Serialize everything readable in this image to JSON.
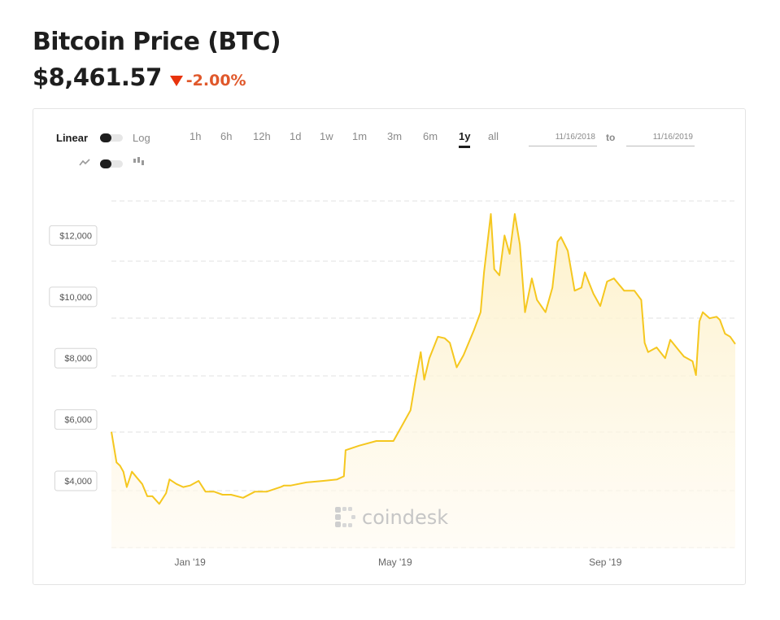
{
  "header": {
    "title": "Bitcoin Price (BTC)",
    "price": "$8,461.57",
    "change": "-2.00%"
  },
  "controls": {
    "scale_linear": "Linear",
    "scale_log": "Log",
    "ranges": [
      "1h",
      "6h",
      "12h",
      "1d",
      "1w",
      "1m",
      "3m",
      "6m",
      "1y",
      "all"
    ],
    "active_range": "1y",
    "date_from": "11/16/2018",
    "date_to_label": "to",
    "date_to": "11/16/2019"
  },
  "watermark": {
    "text": "coindesk"
  },
  "colors": {
    "line": "#f5c71f",
    "fill": "#fdf6dc",
    "change": "#e0582b",
    "arrow": "#e8330c"
  },
  "chart_data": {
    "type": "area",
    "title": "",
    "xlabel": "",
    "ylabel": "",
    "ylim": [
      1800,
      14000
    ],
    "x_ticks": [
      "Jan '19",
      "May '19",
      "Sep '19"
    ],
    "y_ticks": [
      "$4,000",
      "$6,000",
      "$8,000",
      "$10,000",
      "$12,000"
    ],
    "y_tick_values": [
      4000,
      6000,
      8000,
      10000,
      12000
    ],
    "grid": true,
    "series": [
      {
        "x": [
          "2018-11-16",
          "2018-11-19",
          "2018-11-21",
          "2018-11-23",
          "2018-11-25",
          "2018-11-28",
          "2018-12-01",
          "2018-12-04",
          "2018-12-07",
          "2018-12-10",
          "2018-12-14",
          "2018-12-18",
          "2018-12-20",
          "2018-12-24",
          "2018-12-28",
          "2019-01-01",
          "2019-01-06",
          "2019-01-10",
          "2019-01-15",
          "2019-01-20",
          "2019-01-25",
          "2019-02-01",
          "2019-02-08",
          "2019-02-15",
          "2019-02-23",
          "2019-02-25",
          "2019-03-01",
          "2019-03-10",
          "2019-03-20",
          "2019-03-28",
          "2019-04-01",
          "2019-04-02",
          "2019-04-10",
          "2019-04-20",
          "2019-04-30",
          "2019-05-05",
          "2019-05-10",
          "2019-05-13",
          "2019-05-16",
          "2019-05-18",
          "2019-05-21",
          "2019-05-26",
          "2019-05-30",
          "2019-06-02",
          "2019-06-06",
          "2019-06-10",
          "2019-06-16",
          "2019-06-20",
          "2019-06-22",
          "2019-06-26",
          "2019-06-28",
          "2019-07-01",
          "2019-07-04",
          "2019-07-07",
          "2019-07-10",
          "2019-07-13",
          "2019-07-16",
          "2019-07-20",
          "2019-07-23",
          "2019-07-28",
          "2019-08-01",
          "2019-08-04",
          "2019-08-06",
          "2019-08-10",
          "2019-08-14",
          "2019-08-18",
          "2019-08-20",
          "2019-08-25",
          "2019-08-29",
          "2019-09-02",
          "2019-09-06",
          "2019-09-12",
          "2019-09-18",
          "2019-09-22",
          "2019-09-24",
          "2019-09-26",
          "2019-10-01",
          "2019-10-06",
          "2019-10-09",
          "2019-10-14",
          "2019-10-17",
          "2019-10-22",
          "2019-10-24",
          "2019-10-26",
          "2019-10-28",
          "2019-11-01",
          "2019-11-05",
          "2019-11-07",
          "2019-11-10",
          "2019-11-13",
          "2019-11-16"
        ],
        "values": [
          5600,
          4600,
          4500,
          4300,
          3800,
          4300,
          4100,
          3900,
          3500,
          3500,
          3250,
          3600,
          4050,
          3900,
          3800,
          3850,
          4000,
          3650,
          3650,
          3550,
          3550,
          3450,
          3650,
          3650,
          3800,
          3850,
          3850,
          3950,
          4000,
          4050,
          4150,
          5000,
          5150,
          5300,
          5300,
          5800,
          6300,
          7300,
          8200,
          7300,
          8000,
          8700,
          8650,
          8500,
          7700,
          8100,
          8900,
          9500,
          10800,
          12700,
          10900,
          10700,
          12000,
          11400,
          12700,
          11700,
          9500,
          10600,
          9900,
          9500,
          10300,
          11800,
          11950,
          11500,
          10200,
          10300,
          10800,
          10100,
          9700,
          10500,
          10600,
          10200,
          10200,
          9900,
          8500,
          8200,
          8350,
          8000,
          8600,
          8250,
          8050,
          7900,
          7450,
          9200,
          9500,
          9300,
          9350,
          9250,
          8800,
          8700,
          8461.57
        ]
      }
    ]
  }
}
